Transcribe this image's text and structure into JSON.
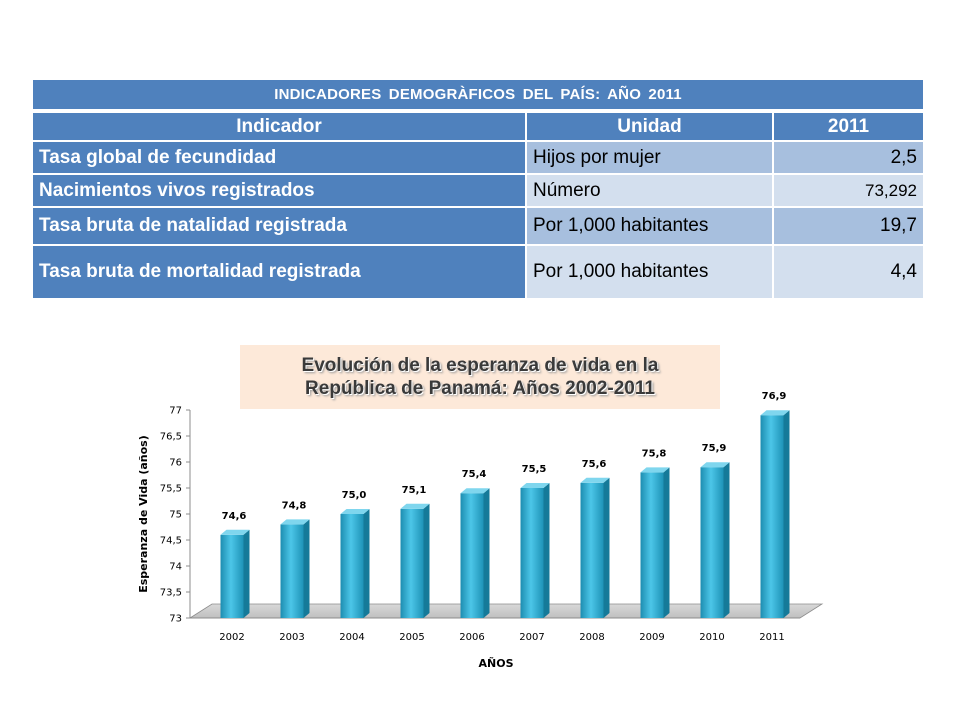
{
  "table": {
    "title": "INDICADORES   DEMOGRÀFICOS DEL PAÍS: AÑO 2011",
    "headers": [
      "Indicador",
      "Unidad",
      "2011"
    ],
    "rows": [
      {
        "indicator": "Tasa global de fecundidad",
        "unit": "Hijos por mujer",
        "value": "2,5"
      },
      {
        "indicator": "Nacimientos vivos registrados",
        "unit": "Número",
        "value": "73,292"
      },
      {
        "indicator": "Tasa bruta de natalidad registrada",
        "unit": "Por 1,000 habitantes",
        "value": "19,7"
      },
      {
        "indicator": "Tasa bruta de mortalidad registrada",
        "unit": "Por 1,000 habitantes",
        "value": "4,4"
      }
    ]
  },
  "chart_data": {
    "type": "bar",
    "title_lines": [
      "Evolución de la esperanza de vida en la",
      "República de Panamá: Años 2002-2011"
    ],
    "xlabel": "AÑOS",
    "ylabel": "Esperanza de Vida (años)",
    "categories": [
      "2002",
      "2003",
      "2004",
      "2005",
      "2006",
      "2007",
      "2008",
      "2009",
      "2010",
      "2011"
    ],
    "values": [
      74.6,
      74.8,
      75.0,
      75.1,
      75.4,
      75.5,
      75.6,
      75.8,
      75.9,
      76.9
    ],
    "data_labels": [
      "74,6",
      "74,8",
      "75,0",
      "75,1",
      "75,4",
      "75,5",
      "75,6",
      "75,8",
      "75,9",
      "76,9"
    ],
    "ylim": [
      73,
      77
    ],
    "yticks": [
      73,
      73.5,
      74,
      74.5,
      75,
      75.5,
      76,
      76.5,
      77
    ],
    "ytick_labels": [
      "73",
      "73,5",
      "74",
      "74,5",
      "75",
      "75,5",
      "76",
      "76,5",
      "77"
    ],
    "bar_color": "#2ea7cb",
    "style": "3d-cylinder-columns",
    "grid": false,
    "legend": "none"
  }
}
